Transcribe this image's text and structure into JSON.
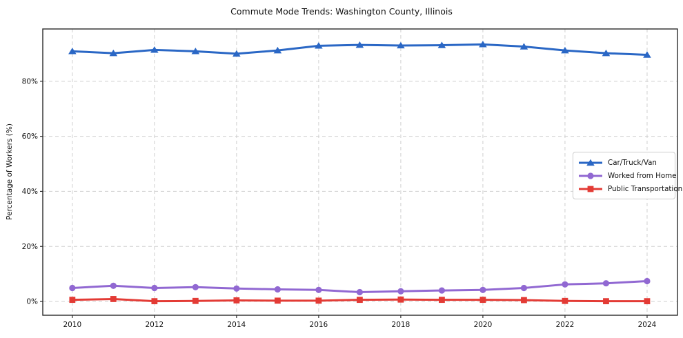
{
  "chart_data": {
    "type": "line",
    "title": "Commute Mode Trends: Washington County, Illinois",
    "xlabel": "",
    "ylabel": "Percentage of Workers (%)",
    "x": [
      2010,
      2011,
      2012,
      2013,
      2014,
      2015,
      2016,
      2017,
      2018,
      2019,
      2020,
      2021,
      2022,
      2023,
      2024
    ],
    "xticks": [
      2010,
      2012,
      2014,
      2016,
      2018,
      2020,
      2022,
      2024
    ],
    "yticks": [
      0,
      20,
      40,
      60,
      80
    ],
    "ytick_suffix": "%",
    "xlim": [
      2009.28,
      2024.74
    ],
    "ylim": [
      -5,
      99
    ],
    "grid": true,
    "legend_position": "center right",
    "series": [
      {
        "name": "Car/Truck/Van",
        "color": "#2a67c5",
        "marker": "triangle",
        "values": [
          90.9,
          90.2,
          91.4,
          90.9,
          90.0,
          91.2,
          92.9,
          93.2,
          93.0,
          93.1,
          93.4,
          92.6,
          91.2,
          90.2,
          89.6
        ]
      },
      {
        "name": "Worked from Home",
        "color": "#9168d2",
        "marker": "circle",
        "values": [
          4.9,
          5.7,
          4.9,
          5.2,
          4.7,
          4.4,
          4.2,
          3.4,
          3.7,
          4.0,
          4.2,
          4.9,
          6.2,
          6.6,
          7.4
        ]
      },
      {
        "name": "Public Transportation",
        "color": "#e33b35",
        "marker": "square",
        "values": [
          0.6,
          0.9,
          0.1,
          0.2,
          0.4,
          0.3,
          0.3,
          0.6,
          0.7,
          0.6,
          0.6,
          0.5,
          0.2,
          0.1,
          0.1
        ]
      }
    ]
  }
}
